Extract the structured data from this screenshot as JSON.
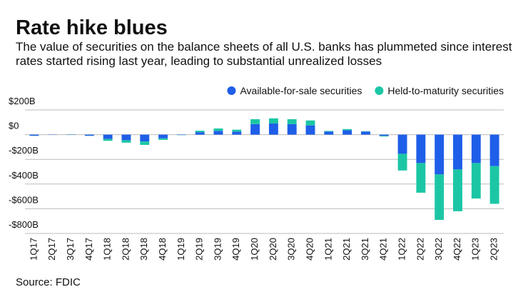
{
  "chart_data": {
    "type": "stacked-bar",
    "title": "Rate hike blues",
    "subtitle": "The value of securities on the balance sheets of all U.S. banks has plummeted since interest rates started rising last year, leading to substantial unrealized losses",
    "source": "Source: FDIC",
    "legend": "top-right",
    "grid": true,
    "categories": [
      "1Q17",
      "2Q17",
      "3Q17",
      "4Q17",
      "1Q18",
      "2Q18",
      "3Q18",
      "4Q18",
      "1Q19",
      "2Q19",
      "3Q19",
      "4Q19",
      "1Q20",
      "2Q20",
      "3Q20",
      "4Q20",
      "1Q21",
      "2Q21",
      "3Q21",
      "4Q21",
      "1Q22",
      "2Q22",
      "3Q22",
      "4Q22",
      "1Q23",
      "2Q23"
    ],
    "series": [
      {
        "name": "Available-for-sale securities",
        "color": "#1f5ee8",
        "values": [
          -8,
          -2,
          2,
          -8,
          -35,
          -45,
          -55,
          -30,
          -3,
          20,
          30,
          25,
          85,
          90,
          85,
          75,
          25,
          35,
          25,
          -10,
          -155,
          -230,
          -322,
          -282,
          -230,
          -255
        ]
      },
      {
        "name": "Held-to-maturity securities",
        "color": "#1cc6a5",
        "values": [
          -2,
          0,
          1,
          -2,
          -15,
          -20,
          -28,
          -12,
          -1,
          12,
          20,
          15,
          40,
          42,
          40,
          40,
          5,
          10,
          3,
          -5,
          -135,
          -240,
          -368,
          -338,
          -287,
          -305
        ]
      }
    ],
    "ylim": [
      -800,
      200
    ],
    "yticks": [
      {
        "value": 200,
        "label": "$200B"
      },
      {
        "value": 0,
        "label": "$0"
      },
      {
        "value": -200,
        "label": "-$200B"
      },
      {
        "value": -400,
        "label": "-$400B"
      },
      {
        "value": -600,
        "label": "-$600B"
      },
      {
        "value": -800,
        "label": "-$800B"
      }
    ]
  }
}
